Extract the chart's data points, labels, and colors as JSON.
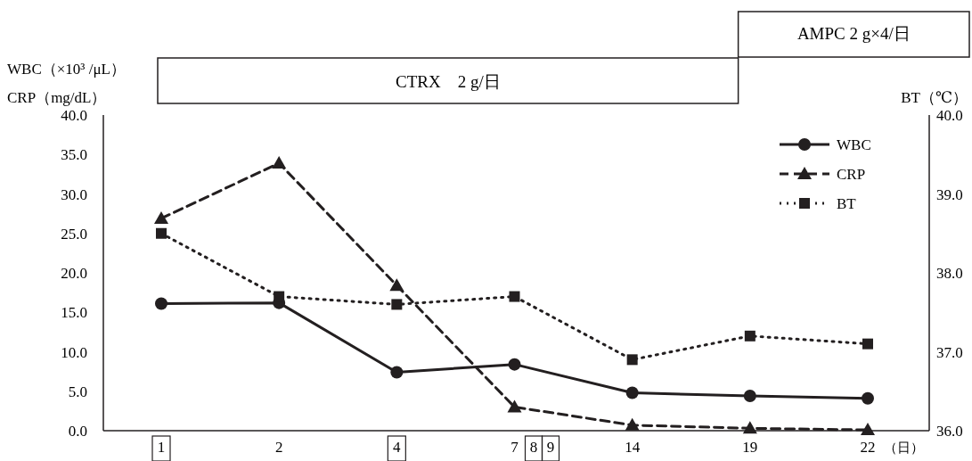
{
  "chart_data": {
    "type": "line",
    "ylabel": "WBC（×10³ /μL）\nCRP（mg/dL）",
    "y2label": "BT（℃）",
    "xlabel": "（日）",
    "categories": [
      "1",
      "2",
      "4",
      "7",
      "14",
      "19",
      "22"
    ],
    "series": [
      {
        "name": "WBC",
        "color": "#231f20",
        "line_style": "solid",
        "marker": "circle",
        "values": [
          16.1,
          16.2,
          7.4,
          8.4,
          4.8,
          4.4,
          4.1
        ]
      },
      {
        "name": "CRP",
        "color": "#231f20",
        "line_style": "dashed",
        "marker": "triangle",
        "values": [
          26.9,
          33.9,
          18.4,
          3.0,
          0.7,
          0.3,
          0.1
        ]
      },
      {
        "name": "BT",
        "color": "#231f20",
        "line_style": "dotted",
        "marker": "square",
        "axis": "y2",
        "values": [
          38.5,
          37.7,
          37.6,
          37.7,
          36.9,
          37.2,
          37.1
        ]
      }
    ],
    "ylim": [
      0,
      40
    ],
    "yticks": [
      {
        "value": 0,
        "label": "0.0"
      },
      {
        "value": 5,
        "label": "5.0"
      },
      {
        "value": 10,
        "label": "10.0"
      },
      {
        "value": 15,
        "label": "15.0"
      },
      {
        "value": 20,
        "label": "20.0"
      },
      {
        "value": 25,
        "label": "25.0"
      },
      {
        "value": 30,
        "label": "30.0"
      },
      {
        "value": 35,
        "label": "35.0"
      },
      {
        "value": 40,
        "label": "40.0"
      }
    ],
    "y2lim": [
      36,
      40
    ],
    "y2ticks": [
      {
        "value": 36,
        "label": "36.0"
      },
      {
        "value": 37,
        "label": "37.0"
      },
      {
        "value": 38,
        "label": "38.0"
      },
      {
        "value": 39,
        "label": "39.0"
      },
      {
        "value": 40,
        "label": "40.0"
      }
    ],
    "legend": "top right",
    "annotations": [
      "CTRX　2 g/日",
      "AMPC 2 g×4/日",
      "8",
      "9"
    ]
  }
}
